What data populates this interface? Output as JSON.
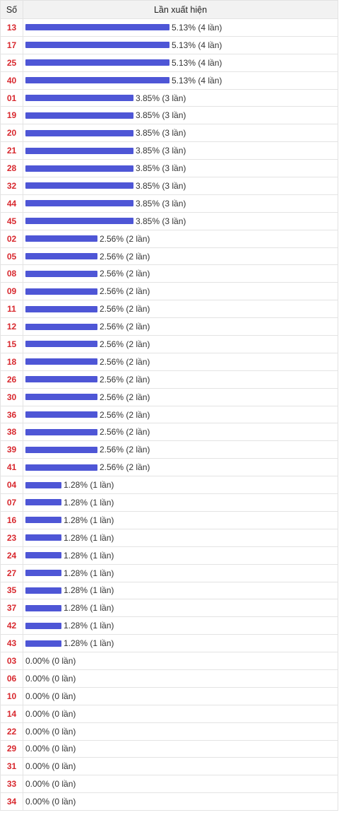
{
  "table": {
    "header_number": "Số",
    "header_frequency": "Lần xuất hiện"
  },
  "colors": {
    "bar": "#4e56d6",
    "number_text": "#d8282e"
  },
  "chart_data": {
    "type": "bar",
    "orientation": "horizontal",
    "title": "",
    "categories": [
      "13",
      "17",
      "25",
      "40",
      "01",
      "19",
      "20",
      "21",
      "28",
      "32",
      "44",
      "45",
      "02",
      "05",
      "08",
      "09",
      "11",
      "12",
      "15",
      "18",
      "26",
      "30",
      "36",
      "38",
      "39",
      "41",
      "04",
      "07",
      "16",
      "23",
      "24",
      "27",
      "35",
      "37",
      "42",
      "43",
      "03",
      "06",
      "10",
      "14",
      "22",
      "29",
      "31",
      "33",
      "34"
    ],
    "values": [
      4,
      4,
      4,
      4,
      3,
      3,
      3,
      3,
      3,
      3,
      3,
      3,
      2,
      2,
      2,
      2,
      2,
      2,
      2,
      2,
      2,
      2,
      2,
      2,
      2,
      2,
      1,
      1,
      1,
      1,
      1,
      1,
      1,
      1,
      1,
      1,
      0,
      0,
      0,
      0,
      0,
      0,
      0,
      0,
      0
    ],
    "labels": [
      "5.13% (4 lần)",
      "5.13% (4 lần)",
      "5.13% (4 lần)",
      "5.13% (4 lần)",
      "3.85% (3 lần)",
      "3.85% (3 lần)",
      "3.85% (3 lần)",
      "3.85% (3 lần)",
      "3.85% (3 lần)",
      "3.85% (3 lần)",
      "3.85% (3 lần)",
      "3.85% (3 lần)",
      "2.56% (2 lần)",
      "2.56% (2 lần)",
      "2.56% (2 lần)",
      "2.56% (2 lần)",
      "2.56% (2 lần)",
      "2.56% (2 lần)",
      "2.56% (2 lần)",
      "2.56% (2 lần)",
      "2.56% (2 lần)",
      "2.56% (2 lần)",
      "2.56% (2 lần)",
      "2.56% (2 lần)",
      "2.56% (2 lần)",
      "2.56% (2 lần)",
      "1.28% (1 lần)",
      "1.28% (1 lần)",
      "1.28% (1 lần)",
      "1.28% (1 lần)",
      "1.28% (1 lần)",
      "1.28% (1 lần)",
      "1.28% (1 lần)",
      "1.28% (1 lần)",
      "1.28% (1 lần)",
      "1.28% (1 lần)",
      "0.00% (0 lần)",
      "0.00% (0 lần)",
      "0.00% (0 lần)",
      "0.00% (0 lần)",
      "0.00% (0 lần)",
      "0.00% (0 lần)",
      "0.00% (0 lần)",
      "0.00% (0 lần)",
      "0.00% (0 lần)"
    ],
    "xlim": [
      0,
      4
    ]
  }
}
